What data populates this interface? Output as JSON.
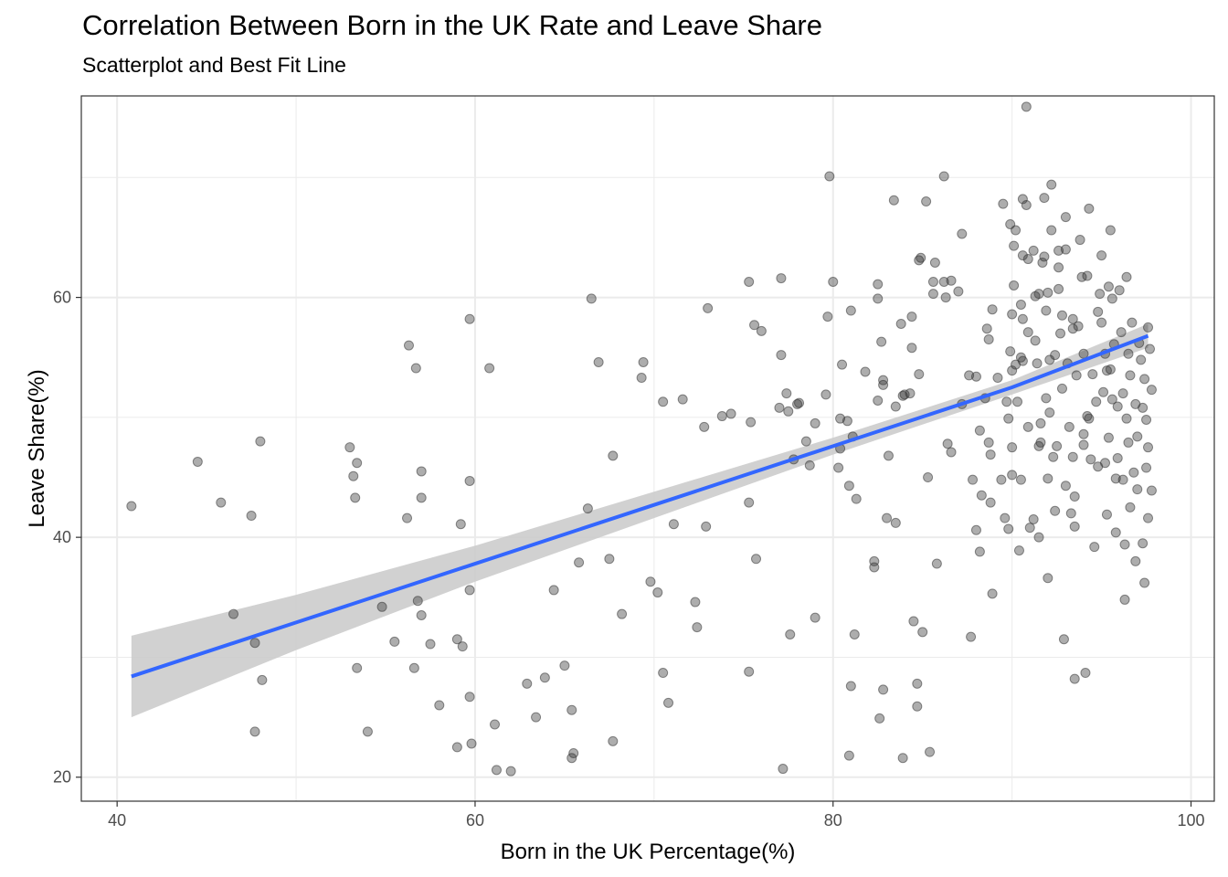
{
  "chart_data": {
    "type": "scatter",
    "title": "Correlation Between Born in the UK Rate and Leave Share",
    "subtitle": "Scatterplot and Best Fit Line",
    "xlabel": "Born in the UK Percentage(%)",
    "ylabel": "Leave Share(%)",
    "xlim": [
      38.0,
      101.3
    ],
    "ylim": [
      18.0,
      76.8
    ],
    "xticks": [
      40,
      60,
      80,
      100
    ],
    "yticks": [
      20,
      40,
      60
    ],
    "grid": true,
    "colors": {
      "points": "#333333",
      "fit_line": "#3366ff",
      "ribbon": "#cccccc",
      "grid": "#ebebeb",
      "border": "#333333"
    },
    "fit_line": {
      "x": [
        40.8,
        50,
        60,
        70,
        80,
        90,
        97.6
      ],
      "y": [
        28.4,
        32.9,
        37.8,
        42.7,
        47.6,
        52.5,
        56.8
      ],
      "lower": [
        25.0,
        30.6,
        36.3,
        41.6,
        46.9,
        51.9,
        55.8
      ],
      "upper": [
        31.8,
        35.2,
        39.3,
        43.8,
        48.3,
        53.1,
        57.8
      ]
    },
    "points": [
      [
        40.8,
        42.6
      ],
      [
        44.5,
        46.3
      ],
      [
        45.8,
        42.9
      ],
      [
        46.5,
        33.6
      ],
      [
        47.5,
        41.8
      ],
      [
        47.7,
        31.2
      ],
      [
        47.7,
        23.8
      ],
      [
        48.0,
        48.0
      ],
      [
        48.1,
        28.1
      ],
      [
        53.0,
        47.5
      ],
      [
        53.2,
        45.1
      ],
      [
        53.3,
        43.3
      ],
      [
        53.4,
        46.2
      ],
      [
        53.4,
        29.1
      ],
      [
        54.0,
        23.8
      ],
      [
        54.8,
        34.2
      ],
      [
        55.5,
        31.3
      ],
      [
        56.2,
        41.6
      ],
      [
        56.3,
        56.0
      ],
      [
        56.6,
        29.1
      ],
      [
        56.7,
        54.1
      ],
      [
        56.8,
        34.7
      ],
      [
        57.0,
        33.5
      ],
      [
        57.0,
        45.5
      ],
      [
        57.0,
        43.3
      ],
      [
        57.5,
        31.1
      ],
      [
        58.0,
        26.0
      ],
      [
        59.0,
        22.5
      ],
      [
        59.0,
        31.5
      ],
      [
        59.2,
        41.1
      ],
      [
        59.3,
        30.9
      ],
      [
        59.7,
        58.2
      ],
      [
        59.7,
        44.7
      ],
      [
        59.7,
        35.6
      ],
      [
        59.7,
        26.7
      ],
      [
        59.8,
        22.8
      ],
      [
        60.8,
        54.1
      ],
      [
        61.1,
        24.4
      ],
      [
        61.2,
        20.6
      ],
      [
        62.0,
        20.5
      ],
      [
        62.9,
        27.8
      ],
      [
        63.4,
        25.0
      ],
      [
        63.9,
        28.3
      ],
      [
        64.4,
        35.6
      ],
      [
        65.0,
        29.3
      ],
      [
        65.4,
        25.6
      ],
      [
        65.4,
        21.6
      ],
      [
        65.5,
        22.0
      ],
      [
        65.8,
        37.9
      ],
      [
        66.3,
        42.4
      ],
      [
        66.5,
        59.9
      ],
      [
        66.9,
        54.6
      ],
      [
        67.5,
        38.2
      ],
      [
        67.7,
        46.8
      ],
      [
        67.7,
        23.0
      ],
      [
        68.2,
        33.6
      ],
      [
        69.3,
        53.3
      ],
      [
        69.4,
        54.6
      ],
      [
        69.8,
        36.3
      ],
      [
        70.2,
        35.4
      ],
      [
        70.5,
        51.3
      ],
      [
        70.5,
        28.7
      ],
      [
        70.8,
        26.2
      ],
      [
        71.1,
        41.1
      ],
      [
        71.6,
        51.5
      ],
      [
        72.3,
        34.6
      ],
      [
        72.4,
        32.5
      ],
      [
        72.8,
        49.2
      ],
      [
        72.9,
        40.9
      ],
      [
        73.0,
        59.1
      ],
      [
        73.8,
        50.1
      ],
      [
        74.3,
        50.3
      ],
      [
        75.3,
        42.9
      ],
      [
        75.3,
        61.3
      ],
      [
        75.3,
        28.8
      ],
      [
        75.4,
        49.6
      ],
      [
        75.6,
        57.7
      ],
      [
        75.7,
        38.2
      ],
      [
        76.0,
        57.2
      ],
      [
        77.0,
        50.8
      ],
      [
        77.1,
        61.6
      ],
      [
        77.1,
        55.2
      ],
      [
        77.2,
        20.7
      ],
      [
        77.4,
        52.0
      ],
      [
        77.5,
        50.5
      ],
      [
        77.6,
        31.9
      ],
      [
        77.8,
        46.5
      ],
      [
        78.0,
        51.1
      ],
      [
        78.1,
        51.2
      ],
      [
        78.5,
        48.0
      ],
      [
        78.7,
        46.0
      ],
      [
        79.0,
        49.5
      ],
      [
        79.0,
        33.3
      ],
      [
        79.6,
        51.9
      ],
      [
        79.7,
        58.4
      ],
      [
        79.8,
        70.1
      ],
      [
        80.0,
        61.3
      ],
      [
        80.3,
        45.8
      ],
      [
        80.4,
        47.4
      ],
      [
        80.4,
        49.9
      ],
      [
        80.5,
        54.4
      ],
      [
        80.8,
        49.7
      ],
      [
        80.9,
        44.3
      ],
      [
        80.9,
        21.8
      ],
      [
        81.0,
        58.9
      ],
      [
        81.0,
        27.6
      ],
      [
        81.1,
        48.4
      ],
      [
        81.2,
        31.9
      ],
      [
        81.3,
        43.2
      ],
      [
        81.8,
        53.8
      ],
      [
        82.3,
        37.5
      ],
      [
        82.3,
        38.0
      ],
      [
        82.5,
        61.1
      ],
      [
        82.5,
        59.9
      ],
      [
        82.5,
        51.4
      ],
      [
        82.6,
        24.9
      ],
      [
        82.7,
        56.3
      ],
      [
        82.8,
        53.1
      ],
      [
        82.8,
        52.7
      ],
      [
        82.8,
        27.3
      ],
      [
        83.0,
        41.6
      ],
      [
        83.1,
        46.8
      ],
      [
        83.4,
        68.1
      ],
      [
        83.5,
        50.9
      ],
      [
        83.5,
        41.2
      ],
      [
        83.8,
        57.8
      ],
      [
        83.9,
        51.8
      ],
      [
        83.9,
        21.6
      ],
      [
        84.0,
        51.9
      ],
      [
        84.3,
        52.0
      ],
      [
        84.4,
        58.4
      ],
      [
        84.4,
        55.8
      ],
      [
        84.5,
        33.0
      ],
      [
        84.7,
        27.8
      ],
      [
        84.7,
        25.9
      ],
      [
        84.8,
        53.6
      ],
      [
        84.8,
        63.1
      ],
      [
        84.9,
        63.3
      ],
      [
        85.0,
        32.1
      ],
      [
        85.2,
        68.0
      ],
      [
        85.3,
        45.0
      ],
      [
        85.4,
        22.1
      ],
      [
        85.6,
        61.3
      ],
      [
        85.6,
        60.3
      ],
      [
        85.7,
        62.9
      ],
      [
        85.8,
        37.8
      ],
      [
        86.2,
        70.1
      ],
      [
        86.2,
        61.3
      ],
      [
        86.3,
        60.0
      ],
      [
        86.4,
        47.8
      ],
      [
        86.6,
        47.1
      ],
      [
        86.6,
        61.4
      ],
      [
        87.0,
        60.5
      ],
      [
        87.2,
        65.3
      ],
      [
        87.2,
        51.1
      ],
      [
        87.6,
        53.5
      ],
      [
        87.7,
        31.7
      ],
      [
        87.8,
        44.8
      ],
      [
        88.0,
        53.4
      ],
      [
        88.0,
        40.6
      ],
      [
        88.2,
        38.8
      ],
      [
        88.2,
        48.9
      ],
      [
        88.3,
        43.5
      ],
      [
        88.5,
        51.6
      ],
      [
        88.6,
        57.4
      ],
      [
        88.7,
        56.5
      ],
      [
        88.7,
        47.9
      ],
      [
        88.8,
        46.9
      ],
      [
        88.8,
        42.9
      ],
      [
        88.9,
        59.0
      ],
      [
        88.9,
        35.3
      ],
      [
        89.2,
        53.3
      ],
      [
        89.4,
        44.8
      ],
      [
        89.5,
        67.8
      ],
      [
        89.6,
        41.6
      ],
      [
        89.7,
        51.3
      ],
      [
        89.8,
        40.7
      ],
      [
        89.8,
        49.9
      ],
      [
        89.9,
        66.1
      ],
      [
        89.9,
        55.5
      ],
      [
        90.0,
        58.6
      ],
      [
        90.0,
        53.9
      ],
      [
        90.0,
        47.5
      ],
      [
        90.0,
        45.2
      ],
      [
        90.1,
        64.3
      ],
      [
        90.1,
        61.0
      ],
      [
        90.2,
        65.6
      ],
      [
        90.2,
        54.4
      ],
      [
        90.3,
        51.3
      ],
      [
        90.4,
        38.9
      ],
      [
        90.5,
        59.4
      ],
      [
        90.5,
        55.0
      ],
      [
        90.5,
        44.8
      ],
      [
        90.6,
        68.2
      ],
      [
        90.6,
        63.5
      ],
      [
        90.6,
        58.2
      ],
      [
        90.6,
        54.7
      ],
      [
        90.8,
        75.9
      ],
      [
        90.8,
        67.7
      ],
      [
        90.9,
        63.2
      ],
      [
        90.9,
        57.1
      ],
      [
        90.9,
        49.2
      ],
      [
        91.0,
        40.8
      ],
      [
        91.2,
        63.9
      ],
      [
        91.2,
        41.5
      ],
      [
        91.3,
        60.1
      ],
      [
        91.3,
        56.4
      ],
      [
        91.4,
        54.5
      ],
      [
        91.5,
        40.0
      ],
      [
        91.5,
        60.3
      ],
      [
        91.5,
        47.6
      ],
      [
        91.6,
        49.5
      ],
      [
        91.6,
        47.9
      ],
      [
        91.7,
        62.9
      ],
      [
        91.8,
        68.3
      ],
      [
        91.8,
        63.4
      ],
      [
        91.9,
        58.9
      ],
      [
        91.9,
        51.6
      ],
      [
        92.0,
        60.4
      ],
      [
        92.0,
        44.9
      ],
      [
        92.0,
        36.6
      ],
      [
        92.1,
        54.8
      ],
      [
        92.1,
        50.4
      ],
      [
        92.2,
        69.4
      ],
      [
        92.2,
        65.6
      ],
      [
        92.3,
        46.7
      ],
      [
        92.4,
        42.2
      ],
      [
        92.4,
        55.2
      ],
      [
        92.5,
        47.6
      ],
      [
        92.6,
        63.9
      ],
      [
        92.6,
        62.5
      ],
      [
        92.6,
        60.7
      ],
      [
        92.7,
        57.0
      ],
      [
        92.8,
        58.5
      ],
      [
        92.8,
        52.4
      ],
      [
        92.9,
        31.5
      ],
      [
        93.0,
        66.7
      ],
      [
        93.0,
        64.0
      ],
      [
        93.0,
        44.3
      ],
      [
        93.1,
        54.5
      ],
      [
        93.2,
        49.2
      ],
      [
        93.3,
        42.0
      ],
      [
        93.4,
        58.2
      ],
      [
        93.4,
        57.4
      ],
      [
        93.4,
        46.7
      ],
      [
        93.5,
        43.4
      ],
      [
        93.5,
        40.9
      ],
      [
        93.5,
        28.2
      ],
      [
        93.6,
        53.5
      ],
      [
        93.7,
        57.6
      ],
      [
        93.8,
        64.8
      ],
      [
        93.9,
        61.7
      ],
      [
        94.0,
        55.3
      ],
      [
        94.0,
        48.6
      ],
      [
        94.0,
        47.7
      ],
      [
        94.1,
        28.7
      ],
      [
        94.2,
        61.8
      ],
      [
        94.2,
        50.1
      ],
      [
        94.3,
        67.4
      ],
      [
        94.3,
        49.9
      ],
      [
        94.4,
        46.5
      ],
      [
        94.5,
        53.6
      ],
      [
        94.6,
        39.2
      ],
      [
        94.7,
        51.3
      ],
      [
        94.8,
        58.8
      ],
      [
        94.8,
        45.9
      ],
      [
        94.9,
        60.3
      ],
      [
        95.0,
        63.5
      ],
      [
        95.0,
        57.9
      ],
      [
        95.1,
        52.1
      ],
      [
        95.2,
        55.3
      ],
      [
        95.2,
        46.2
      ],
      [
        95.3,
        53.9
      ],
      [
        95.3,
        41.9
      ],
      [
        95.4,
        60.9
      ],
      [
        95.4,
        48.3
      ],
      [
        95.5,
        65.6
      ],
      [
        95.5,
        54.0
      ],
      [
        95.6,
        59.9
      ],
      [
        95.6,
        51.5
      ],
      [
        95.7,
        56.1
      ],
      [
        95.8,
        44.9
      ],
      [
        95.8,
        40.4
      ],
      [
        95.9,
        50.9
      ],
      [
        95.9,
        46.6
      ],
      [
        96.0,
        60.6
      ],
      [
        96.1,
        57.1
      ],
      [
        96.2,
        52.0
      ],
      [
        96.2,
        44.8
      ],
      [
        96.3,
        39.4
      ],
      [
        96.3,
        34.8
      ],
      [
        96.4,
        61.7
      ],
      [
        96.4,
        49.9
      ],
      [
        96.5,
        55.3
      ],
      [
        96.5,
        47.9
      ],
      [
        96.6,
        53.5
      ],
      [
        96.6,
        42.5
      ],
      [
        96.7,
        57.9
      ],
      [
        96.8,
        45.4
      ],
      [
        96.9,
        51.1
      ],
      [
        96.9,
        38.0
      ],
      [
        97.0,
        48.4
      ],
      [
        97.0,
        44.0
      ],
      [
        97.1,
        56.2
      ],
      [
        97.2,
        54.8
      ],
      [
        97.3,
        50.8
      ],
      [
        97.3,
        39.5
      ],
      [
        97.4,
        36.2
      ],
      [
        97.4,
        53.2
      ],
      [
        97.5,
        45.8
      ],
      [
        97.5,
        49.8
      ],
      [
        97.6,
        57.5
      ],
      [
        97.6,
        47.5
      ],
      [
        97.6,
        41.6
      ],
      [
        97.7,
        55.7
      ],
      [
        97.8,
        52.3
      ],
      [
        97.8,
        43.9
      ]
    ]
  }
}
